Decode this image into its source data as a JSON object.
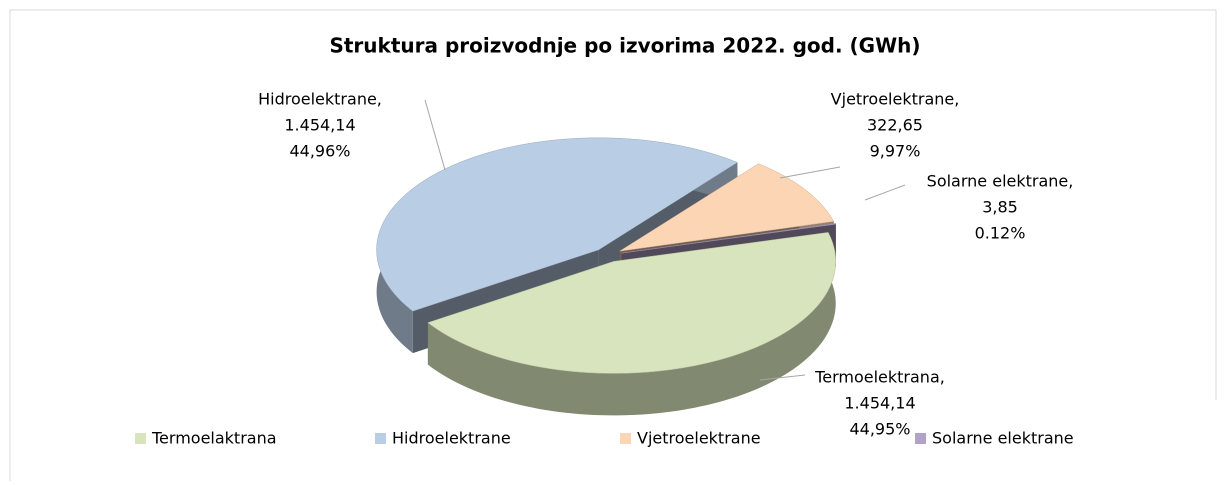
{
  "chart_data": {
    "type": "pie",
    "title": "Struktura proizvodnje po izvorima 2022. god. (GWh)",
    "categories": [
      "Termoelaktrana",
      "Hidroelektrane",
      "Vjetroelektrane",
      "Solarne elektrane"
    ],
    "label_names": [
      "Termoelektrana,",
      "Hidroelektrane,",
      "Vjetroelektrane,",
      "Solarne elektrane,"
    ],
    "values": [
      1454.14,
      1454.14,
      322.65,
      3.85
    ],
    "value_labels": [
      "1.454,14",
      "1.454,14",
      "322,65",
      "3,85"
    ],
    "percents": [
      44.95,
      44.96,
      9.97,
      0.12
    ],
    "percent_labels": [
      "44,95%",
      "44,96%",
      "9,97%",
      "0.12%"
    ],
    "colors": [
      "#d7e4bd",
      "#b9cde5",
      "#fcd5b5",
      "#b3a2c7"
    ],
    "legend": "bottom"
  }
}
